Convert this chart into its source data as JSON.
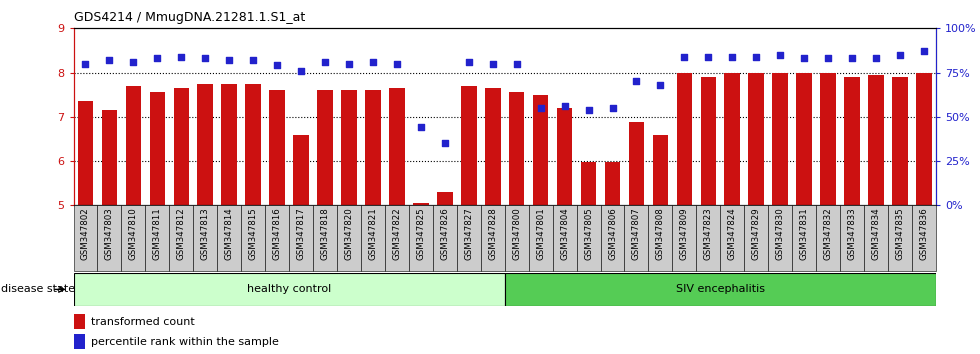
{
  "title": "GDS4214 / MmugDNA.21281.1.S1_at",
  "samples": [
    "GSM347802",
    "GSM347803",
    "GSM347810",
    "GSM347811",
    "GSM347812",
    "GSM347813",
    "GSM347814",
    "GSM347815",
    "GSM347816",
    "GSM347817",
    "GSM347818",
    "GSM347820",
    "GSM347821",
    "GSM347822",
    "GSM347825",
    "GSM347826",
    "GSM347827",
    "GSM347828",
    "GSM347800",
    "GSM347801",
    "GSM347804",
    "GSM347805",
    "GSM347806",
    "GSM347807",
    "GSM347808",
    "GSM347809",
    "GSM347823",
    "GSM347824",
    "GSM347829",
    "GSM347830",
    "GSM347831",
    "GSM347832",
    "GSM347833",
    "GSM347834",
    "GSM347835",
    "GSM347836"
  ],
  "bar_values": [
    7.35,
    7.15,
    7.7,
    7.55,
    7.65,
    7.75,
    7.75,
    7.75,
    7.6,
    6.6,
    7.6,
    7.6,
    7.6,
    7.65,
    5.05,
    5.3,
    7.7,
    7.65,
    7.55,
    7.5,
    7.2,
    5.97,
    5.97,
    6.88,
    6.6,
    8.0,
    7.9,
    8.0,
    8.0,
    8.0,
    8.0,
    8.0,
    7.9,
    7.95,
    7.9,
    8.0
  ],
  "percentile_values": [
    80,
    82,
    81,
    83,
    84,
    83,
    82,
    82,
    79,
    76,
    81,
    80,
    81,
    80,
    44,
    35,
    81,
    80,
    80,
    55,
    56,
    54,
    55,
    70,
    68,
    84,
    84,
    84,
    84,
    85,
    83,
    83,
    83,
    83,
    85,
    87
  ],
  "n_healthy": 18,
  "healthy_label": "healthy control",
  "siv_label": "SIV encephalitis",
  "disease_state_label": "disease state",
  "ylim_left": [
    5,
    9
  ],
  "ylim_right": [
    0,
    100
  ],
  "yticks_left": [
    5,
    6,
    7,
    8,
    9
  ],
  "yticks_right": [
    0,
    25,
    50,
    75,
    100
  ],
  "ytick_labels_right": [
    "0%",
    "25%",
    "50%",
    "75%",
    "100%"
  ],
  "bar_color": "#cc1111",
  "dot_color": "#2222cc",
  "healthy_bg": "#ccffcc",
  "siv_bg": "#55cc55",
  "xlabel_bg": "#cccccc",
  "bar_width": 0.65
}
